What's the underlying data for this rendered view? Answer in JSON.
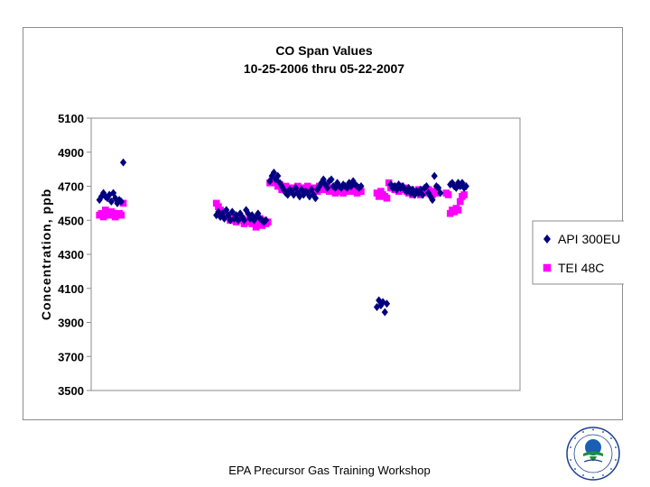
{
  "footer": {
    "text": "EPA Precursor Gas Training Workshop"
  },
  "logo": {
    "icon": "epa-seal-icon",
    "ring_text": "UNITED STATES ENVIRONMENTAL PROTECTION AGENCY"
  },
  "chart_data": {
    "type": "scatter",
    "title": "CO Span Values",
    "subtitle": "10-25-2006 thru 05-22-2007",
    "xlabel": "",
    "ylabel": "Concentration, ppb",
    "ylim": [
      3500,
      5100
    ],
    "yticks": [
      3500,
      3700,
      3900,
      4100,
      4300,
      4500,
      4700,
      4900,
      5100
    ],
    "x_unit": "day index (approx.)",
    "xlim": [
      0,
      210
    ],
    "grid": "none",
    "legend_position": "right",
    "series": [
      {
        "name": "API 300EU",
        "marker": "diamond",
        "color": "#000080",
        "points": [
          [
            1,
            4620
          ],
          [
            2,
            4640
          ],
          [
            3,
            4660
          ],
          [
            4,
            4640
          ],
          [
            5,
            4630
          ],
          [
            6,
            4650
          ],
          [
            7,
            4610
          ],
          [
            8,
            4660
          ],
          [
            9,
            4630
          ],
          [
            10,
            4600
          ],
          [
            11,
            4620
          ],
          [
            12,
            4610
          ],
          [
            13,
            4840
          ],
          [
            60,
            4530
          ],
          [
            61,
            4550
          ],
          [
            62,
            4520
          ],
          [
            63,
            4540
          ],
          [
            64,
            4510
          ],
          [
            65,
            4560
          ],
          [
            66,
            4530
          ],
          [
            67,
            4500
          ],
          [
            68,
            4550
          ],
          [
            69,
            4510
          ],
          [
            70,
            4530
          ],
          [
            71,
            4500
          ],
          [
            72,
            4540
          ],
          [
            73,
            4520
          ],
          [
            74,
            4500
          ],
          [
            75,
            4560
          ],
          [
            76,
            4540
          ],
          [
            77,
            4510
          ],
          [
            78,
            4530
          ],
          [
            79,
            4500
          ],
          [
            80,
            4520
          ],
          [
            81,
            4540
          ],
          [
            82,
            4510
          ],
          [
            83,
            4500
          ],
          [
            84,
            4490
          ],
          [
            85,
            4500
          ],
          [
            87,
            4730
          ],
          [
            88,
            4760
          ],
          [
            89,
            4780
          ],
          [
            90,
            4740
          ],
          [
            91,
            4760
          ],
          [
            92,
            4720
          ],
          [
            93,
            4700
          ],
          [
            94,
            4680
          ],
          [
            95,
            4660
          ],
          [
            96,
            4650
          ],
          [
            97,
            4680
          ],
          [
            98,
            4670
          ],
          [
            99,
            4650
          ],
          [
            100,
            4690
          ],
          [
            101,
            4660
          ],
          [
            102,
            4640
          ],
          [
            103,
            4680
          ],
          [
            104,
            4650
          ],
          [
            105,
            4670
          ],
          [
            106,
            4660
          ],
          [
            107,
            4640
          ],
          [
            108,
            4680
          ],
          [
            109,
            4650
          ],
          [
            110,
            4630
          ],
          [
            111,
            4680
          ],
          [
            112,
            4700
          ],
          [
            113,
            4720
          ],
          [
            114,
            4740
          ],
          [
            115,
            4710
          ],
          [
            116,
            4690
          ],
          [
            117,
            4730
          ],
          [
            118,
            4740
          ],
          [
            119,
            4700
          ],
          [
            120,
            4690
          ],
          [
            121,
            4720
          ],
          [
            122,
            4700
          ],
          [
            123,
            4690
          ],
          [
            124,
            4710
          ],
          [
            125,
            4700
          ],
          [
            126,
            4690
          ],
          [
            127,
            4720
          ],
          [
            128,
            4700
          ],
          [
            129,
            4730
          ],
          [
            130,
            4710
          ],
          [
            131,
            4700
          ],
          [
            132,
            4690
          ],
          [
            133,
            4700
          ],
          [
            141,
            3990
          ],
          [
            142,
            4030
          ],
          [
            143,
            4000
          ],
          [
            144,
            4020
          ],
          [
            145,
            3960
          ],
          [
            146,
            4010
          ],
          [
            148,
            4710
          ],
          [
            149,
            4690
          ],
          [
            150,
            4700
          ],
          [
            151,
            4680
          ],
          [
            152,
            4710
          ],
          [
            153,
            4690
          ],
          [
            154,
            4700
          ],
          [
            155,
            4680
          ],
          [
            156,
            4670
          ],
          [
            157,
            4690
          ],
          [
            158,
            4660
          ],
          [
            159,
            4680
          ],
          [
            160,
            4650
          ],
          [
            161,
            4670
          ],
          [
            162,
            4660
          ],
          [
            163,
            4680
          ],
          [
            164,
            4650
          ],
          [
            165,
            4690
          ],
          [
            166,
            4700
          ],
          [
            167,
            4660
          ],
          [
            168,
            4640
          ],
          [
            169,
            4620
          ],
          [
            170,
            4760
          ],
          [
            171,
            4700
          ],
          [
            172,
            4690
          ],
          [
            173,
            4660
          ],
          [
            178,
            4710
          ],
          [
            179,
            4720
          ],
          [
            180,
            4700
          ],
          [
            181,
            4690
          ],
          [
            182,
            4720
          ],
          [
            183,
            4700
          ],
          [
            184,
            4720
          ],
          [
            185,
            4690
          ],
          [
            186,
            4700
          ]
        ]
      },
      {
        "name": "TEI 48C",
        "marker": "square",
        "color": "#ff00ff",
        "points": [
          [
            1,
            4530
          ],
          [
            2,
            4540
          ],
          [
            3,
            4520
          ],
          [
            4,
            4560
          ],
          [
            5,
            4540
          ],
          [
            6,
            4530
          ],
          [
            7,
            4550
          ],
          [
            8,
            4540
          ],
          [
            9,
            4520
          ],
          [
            10,
            4530
          ],
          [
            11,
            4540
          ],
          [
            12,
            4530
          ],
          [
            13,
            4600
          ],
          [
            60,
            4600
          ],
          [
            61,
            4580
          ],
          [
            62,
            4560
          ],
          [
            63,
            4540
          ],
          [
            64,
            4550
          ],
          [
            65,
            4520
          ],
          [
            66,
            4530
          ],
          [
            67,
            4500
          ],
          [
            68,
            4520
          ],
          [
            69,
            4510
          ],
          [
            70,
            4490
          ],
          [
            71,
            4520
          ],
          [
            72,
            4500
          ],
          [
            73,
            4510
          ],
          [
            74,
            4480
          ],
          [
            75,
            4500
          ],
          [
            76,
            4490
          ],
          [
            77,
            4520
          ],
          [
            78,
            4480
          ],
          [
            79,
            4510
          ],
          [
            80,
            4460
          ],
          [
            81,
            4490
          ],
          [
            82,
            4510
          ],
          [
            83,
            4470
          ],
          [
            84,
            4500
          ],
          [
            85,
            4480
          ],
          [
            86,
            4490
          ],
          [
            87,
            4720
          ],
          [
            88,
            4730
          ],
          [
            89,
            4740
          ],
          [
            90,
            4720
          ],
          [
            91,
            4700
          ],
          [
            92,
            4710
          ],
          [
            93,
            4680
          ],
          [
            94,
            4690
          ],
          [
            95,
            4700
          ],
          [
            96,
            4680
          ],
          [
            97,
            4690
          ],
          [
            98,
            4670
          ],
          [
            99,
            4690
          ],
          [
            100,
            4680
          ],
          [
            101,
            4700
          ],
          [
            102,
            4690
          ],
          [
            103,
            4670
          ],
          [
            104,
            4690
          ],
          [
            105,
            4680
          ],
          [
            106,
            4700
          ],
          [
            107,
            4690
          ],
          [
            108,
            4670
          ],
          [
            109,
            4680
          ],
          [
            110,
            4690
          ],
          [
            111,
            4670
          ],
          [
            112,
            4700
          ],
          [
            113,
            4680
          ],
          [
            114,
            4690
          ],
          [
            115,
            4700
          ],
          [
            116,
            4680
          ],
          [
            117,
            4670
          ],
          [
            118,
            4690
          ],
          [
            119,
            4680
          ],
          [
            120,
            4660
          ],
          [
            121,
            4690
          ],
          [
            122,
            4670
          ],
          [
            123,
            4680
          ],
          [
            124,
            4660
          ],
          [
            125,
            4690
          ],
          [
            126,
            4670
          ],
          [
            127,
            4680
          ],
          [
            128,
            4700
          ],
          [
            129,
            4670
          ],
          [
            130,
            4690
          ],
          [
            131,
            4660
          ],
          [
            132,
            4680
          ],
          [
            133,
            4670
          ],
          [
            141,
            4660
          ],
          [
            142,
            4640
          ],
          [
            143,
            4670
          ],
          [
            144,
            4650
          ],
          [
            145,
            4640
          ],
          [
            146,
            4630
          ],
          [
            147,
            4720
          ],
          [
            148,
            4690
          ],
          [
            149,
            4700
          ],
          [
            150,
            4680
          ],
          [
            151,
            4690
          ],
          [
            152,
            4670
          ],
          [
            153,
            4700
          ],
          [
            154,
            4680
          ],
          [
            155,
            4690
          ],
          [
            156,
            4670
          ],
          [
            157,
            4660
          ],
          [
            158,
            4680
          ],
          [
            159,
            4650
          ],
          [
            160,
            4670
          ],
          [
            161,
            4660
          ],
          [
            162,
            4680
          ],
          [
            163,
            4650
          ],
          [
            164,
            4670
          ],
          [
            165,
            4660
          ],
          [
            166,
            4670
          ],
          [
            167,
            4680
          ],
          [
            168,
            4660
          ],
          [
            169,
            4650
          ],
          [
            170,
            4670
          ],
          [
            171,
            4660
          ],
          [
            176,
            4660
          ],
          [
            177,
            4650
          ],
          [
            178,
            4540
          ],
          [
            179,
            4560
          ],
          [
            180,
            4550
          ],
          [
            181,
            4570
          ],
          [
            182,
            4560
          ],
          [
            183,
            4610
          ],
          [
            184,
            4640
          ],
          [
            185,
            4650
          ]
        ]
      }
    ]
  }
}
